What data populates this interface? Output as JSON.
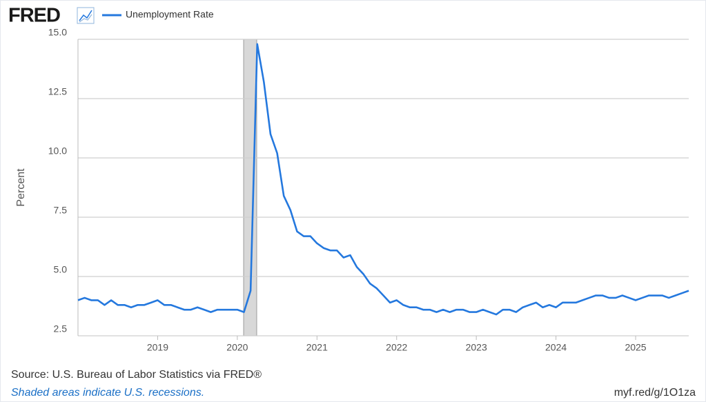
{
  "logo": "FRED",
  "chart_data": {
    "type": "line",
    "ylabel": "Percent",
    "categories": [
      null,
      null,
      null,
      null,
      null,
      null,
      null,
      null,
      null,
      null,
      null,
      null,
      "2019",
      null,
      null,
      null,
      null,
      null,
      null,
      null,
      null,
      null,
      null,
      null,
      "2020",
      null,
      null,
      null,
      null,
      null,
      null,
      null,
      null,
      null,
      null,
      null,
      "2021",
      null,
      null,
      null,
      null,
      null,
      null,
      null,
      null,
      null,
      null,
      null,
      "2022",
      null,
      null,
      null,
      null,
      null,
      null,
      null,
      null,
      null,
      null,
      null,
      "2023",
      null,
      null,
      null,
      null,
      null,
      null,
      null,
      null,
      null,
      null,
      null,
      "2024",
      null,
      null,
      null,
      null,
      null,
      null,
      null,
      null,
      null,
      null,
      null,
      "2025",
      null,
      null,
      null,
      null,
      null,
      null,
      null,
      null
    ],
    "series": [
      {
        "name": "Unemployment Rate",
        "color": "#2478de",
        "values": [
          4.0,
          4.1,
          4.0,
          4.0,
          3.8,
          4.0,
          3.8,
          3.8,
          3.7,
          3.8,
          3.8,
          3.9,
          4.0,
          3.8,
          3.8,
          3.7,
          3.6,
          3.6,
          3.7,
          3.6,
          3.5,
          3.6,
          3.6,
          3.6,
          3.6,
          3.5,
          4.4,
          14.8,
          13.2,
          11.0,
          10.2,
          8.4,
          7.8,
          6.9,
          6.7,
          6.7,
          6.4,
          6.2,
          6.1,
          6.1,
          5.8,
          5.9,
          5.4,
          5.1,
          4.7,
          4.5,
          4.2,
          3.9,
          4.0,
          3.8,
          3.7,
          3.7,
          3.6,
          3.6,
          3.5,
          3.6,
          3.5,
          3.6,
          3.6,
          3.5,
          3.5,
          3.6,
          3.5,
          3.4,
          3.6,
          3.6,
          3.5,
          3.7,
          3.8,
          3.9,
          3.7,
          3.8,
          3.7,
          3.9,
          3.9,
          3.9,
          4.0,
          4.1,
          4.2,
          4.2,
          4.1,
          4.1,
          4.2,
          4.1,
          4.0,
          4.1,
          4.2,
          4.2,
          4.2,
          4.1,
          4.2,
          4.3,
          4.4
        ]
      }
    ],
    "ylim": [
      2.5,
      15
    ],
    "yticks": [
      2.5,
      {
        "value": 5,
        "label": "5.0"
      },
      7.5,
      {
        "value": 10,
        "label": "10.0"
      },
      12.5,
      {
        "value": 15,
        "label": "15.0"
      }
    ],
    "grid": true,
    "source": "Source: U.S. Bureau of Labor Statistics via FRED®",
    "note": "Shaded areas indicate U.S. recessions.",
    "link": "myf.red/g/1O1za"
  }
}
